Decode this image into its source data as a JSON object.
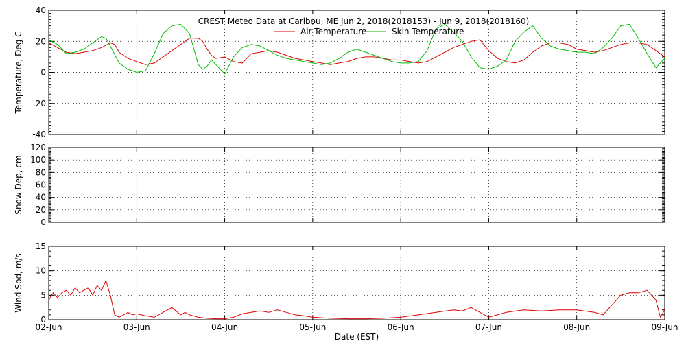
{
  "page": {
    "title": "CREST Meteo Data at Caribou, ME   Jun  2, 2018(2018153) - Jun  9, 2018(2018160)",
    "xlabel": "Date (EST)"
  },
  "colors": {
    "air": "#dd0000",
    "skin": "#00bb00",
    "wind": "#dd0000",
    "axis": "#000000"
  },
  "chart_data": [
    {
      "type": "line",
      "title": "CREST Meteo Data at Caribou, ME   Jun  2, 2018(2018153) - Jun  9, 2018(2018160)",
      "ylabel": "Temperature, Deg C",
      "xlim": [
        0,
        7
      ],
      "ylim": [
        -40,
        40
      ],
      "grid": true,
      "legend": "top-center",
      "yticks": [
        "-40",
        "-20",
        "0",
        "20",
        "40"
      ],
      "series": [
        {
          "name": "Air Temperature",
          "x": [
            0,
            0.1,
            0.2,
            0.3,
            0.4,
            0.5,
            0.6,
            0.7,
            0.75,
            0.8,
            0.9,
            1.0,
            1.1,
            1.2,
            1.3,
            1.4,
            1.5,
            1.6,
            1.7,
            1.75,
            1.8,
            1.85,
            1.9,
            2.0,
            2.1,
            2.2,
            2.3,
            2.4,
            2.5,
            2.6,
            2.7,
            2.8,
            2.9,
            3.0,
            3.1,
            3.2,
            3.3,
            3.4,
            3.5,
            3.6,
            3.7,
            3.8,
            3.9,
            4.0,
            4.1,
            4.2,
            4.3,
            4.4,
            4.5,
            4.6,
            4.7,
            4.8,
            4.9,
            5.0,
            5.1,
            5.2,
            5.3,
            5.4,
            5.5,
            5.6,
            5.7,
            5.8,
            5.9,
            6.0,
            6.1,
            6.2,
            6.3,
            6.4,
            6.5,
            6.6,
            6.7,
            6.8,
            6.9,
            7.0
          ],
          "y": [
            19,
            16,
            13,
            12,
            13,
            14,
            16,
            19,
            18,
            13,
            9,
            7,
            5,
            6,
            10,
            14,
            18,
            22,
            22,
            20,
            15,
            11,
            9,
            10,
            7,
            6,
            12,
            13,
            14,
            13,
            11,
            9,
            8,
            7,
            6,
            5,
            6,
            7,
            9,
            10,
            10,
            9,
            8,
            8,
            7,
            6,
            7,
            10,
            13,
            16,
            18,
            20,
            21,
            14,
            9,
            7,
            6,
            8,
            13,
            17,
            19,
            19,
            18,
            15,
            14,
            13,
            14,
            16,
            18,
            19,
            19,
            18,
            14,
            10
          ]
        },
        {
          "name": "Skin Temperature",
          "x": [
            0,
            0.1,
            0.2,
            0.3,
            0.4,
            0.5,
            0.6,
            0.65,
            0.7,
            0.8,
            0.9,
            1.0,
            1.1,
            1.2,
            1.3,
            1.4,
            1.5,
            1.6,
            1.7,
            1.75,
            1.8,
            1.85,
            1.9,
            2.0,
            2.1,
            2.2,
            2.3,
            2.4,
            2.5,
            2.6,
            2.7,
            2.8,
            2.9,
            3.0,
            3.1,
            3.2,
            3.3,
            3.4,
            3.5,
            3.6,
            3.7,
            3.8,
            3.9,
            4.0,
            4.1,
            4.2,
            4.3,
            4.4,
            4.5,
            4.6,
            4.7,
            4.8,
            4.9,
            5.0,
            5.1,
            5.2,
            5.3,
            5.4,
            5.5,
            5.6,
            5.7,
            5.8,
            5.9,
            6.0,
            6.1,
            6.2,
            6.3,
            6.4,
            6.5,
            6.6,
            6.7,
            6.8,
            6.9,
            7.0
          ],
          "y": [
            21,
            18,
            12,
            13,
            15,
            19,
            23,
            22,
            17,
            6,
            2,
            0,
            1,
            12,
            25,
            30,
            31,
            25,
            5,
            2,
            4,
            8,
            5,
            -1,
            10,
            16,
            18,
            17,
            14,
            11,
            9,
            8,
            7,
            6,
            5,
            6,
            9,
            13,
            15,
            13,
            11,
            9,
            7,
            6,
            6,
            7,
            14,
            28,
            31,
            26,
            20,
            10,
            3,
            2,
            4,
            8,
            20,
            26,
            30,
            22,
            17,
            15,
            14,
            13,
            13,
            12,
            16,
            22,
            30,
            31,
            22,
            12,
            3,
            9
          ]
        }
      ]
    },
    {
      "type": "line",
      "ylabel": "Snow Dep, cm",
      "xlim": [
        0,
        7
      ],
      "ylim": [
        0,
        120
      ],
      "grid": true,
      "yticks": [
        "0",
        "20",
        "40",
        "60",
        "80",
        "100",
        "120"
      ],
      "series": []
    },
    {
      "type": "line",
      "ylabel": "Wind Spd, m/s",
      "xlabel": "Date (EST)",
      "xlim": [
        0,
        7
      ],
      "ylim": [
        0,
        15
      ],
      "grid": true,
      "yticks": [
        "0",
        "5",
        "10",
        "15"
      ],
      "xticks": [
        "02-Jun",
        "03-Jun",
        "04-Jun",
        "05-Jun",
        "06-Jun",
        "07-Jun",
        "08-Jun",
        "09-Jun"
      ],
      "series": [
        {
          "x": [
            0,
            0.05,
            0.1,
            0.15,
            0.2,
            0.25,
            0.3,
            0.35,
            0.4,
            0.45,
            0.5,
            0.55,
            0.6,
            0.65,
            0.7,
            0.75,
            0.8,
            0.85,
            0.9,
            0.95,
            1.0,
            1.1,
            1.2,
            1.3,
            1.4,
            1.5,
            1.55,
            1.6,
            1.7,
            1.8,
            1.9,
            2.0,
            2.1,
            2.2,
            2.3,
            2.4,
            2.5,
            2.6,
            2.7,
            2.8,
            2.9,
            3.0,
            3.2,
            3.4,
            3.6,
            3.8,
            4.0,
            4.2,
            4.4,
            4.6,
            4.7,
            4.8,
            4.9,
            5.0,
            5.2,
            5.4,
            5.6,
            5.8,
            6.0,
            6.2,
            6.3,
            6.4,
            6.5,
            6.6,
            6.7,
            6.8,
            6.85,
            6.9,
            6.95,
            7.0
          ],
          "y": [
            4,
            5.5,
            4.5,
            5.5,
            6,
            5,
            6.5,
            5.5,
            6,
            6.5,
            5,
            7,
            6,
            8,
            5,
            1,
            0.5,
            1,
            1.5,
            1,
            1.2,
            0.8,
            0.5,
            1.5,
            2.5,
            1,
            1.5,
            1,
            0.5,
            0.3,
            0.2,
            0.2,
            0.5,
            1.2,
            1.5,
            1.8,
            1.5,
            2,
            1.5,
            1,
            0.8,
            0.5,
            0.3,
            0.2,
            0.2,
            0.3,
            0.5,
            1,
            1.5,
            2,
            1.8,
            2.5,
            1.5,
            0.5,
            1.5,
            2,
            1.8,
            2,
            2,
            1.5,
            1,
            3,
            5,
            5.5,
            5.5,
            6,
            5,
            4,
            0.5,
            2
          ]
        }
      ]
    }
  ]
}
